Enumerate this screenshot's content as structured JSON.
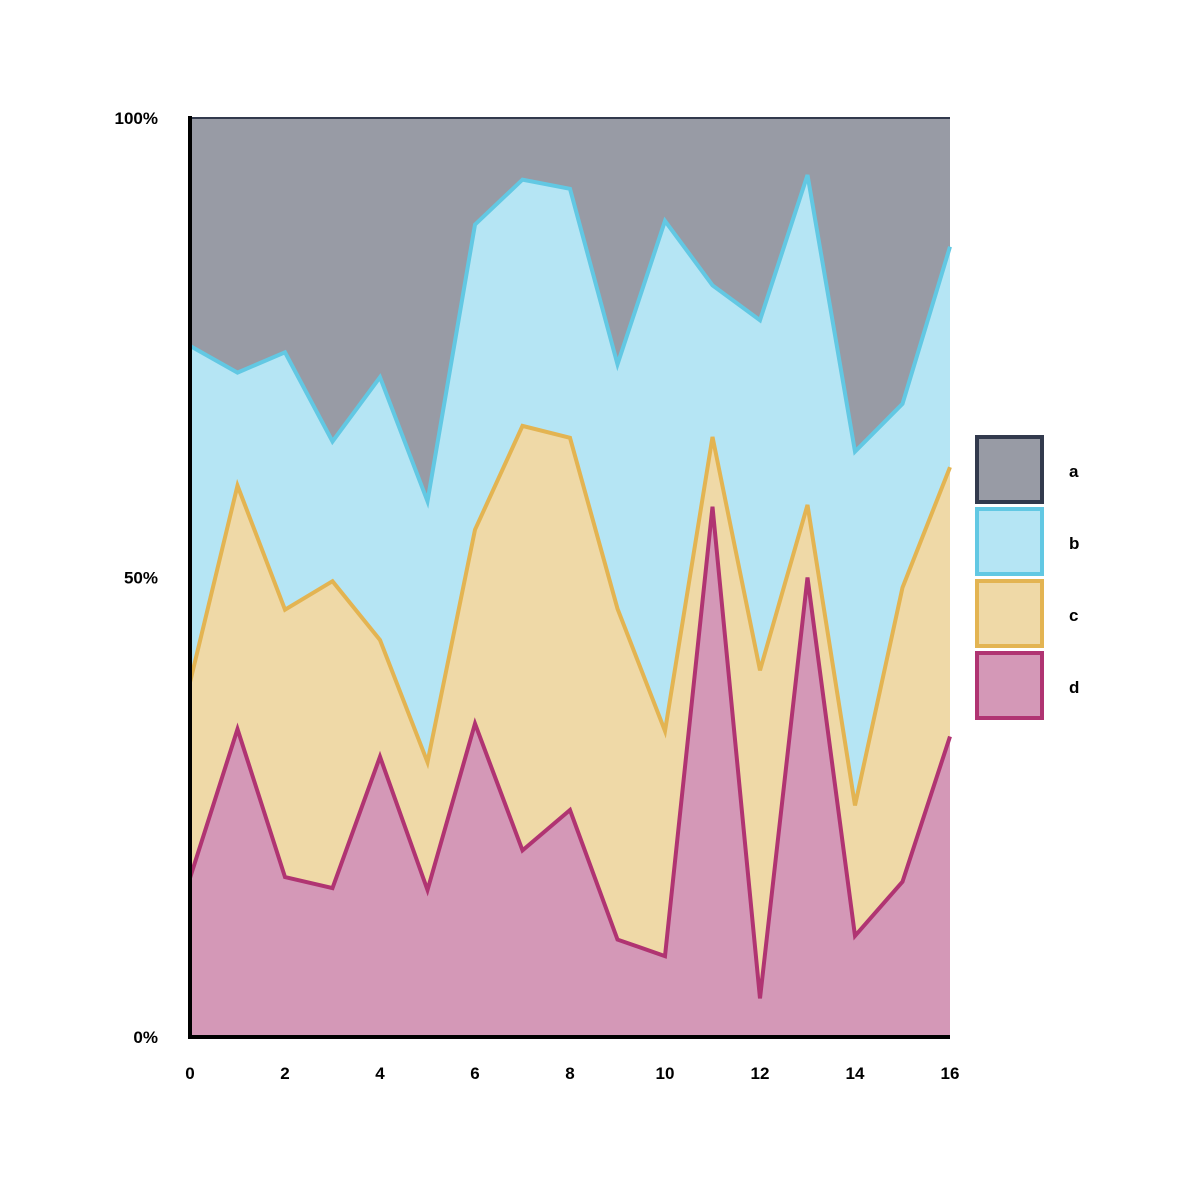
{
  "chart_data": {
    "type": "area",
    "stacked": "percent",
    "x": [
      0,
      1,
      2,
      3,
      4,
      5,
      6,
      7,
      8,
      9,
      10,
      11,
      12,
      13,
      14,
      15,
      16
    ],
    "xlim": [
      0,
      16
    ],
    "ylim": [
      0,
      100
    ],
    "xticks": [
      {
        "value": 0,
        "label": "0"
      },
      {
        "value": 2,
        "label": "2"
      },
      {
        "value": 4,
        "label": "4"
      },
      {
        "value": 6,
        "label": "6"
      },
      {
        "value": 8,
        "label": "8"
      },
      {
        "value": 10,
        "label": "10"
      },
      {
        "value": 12,
        "label": "12"
      },
      {
        "value": 14,
        "label": "14"
      },
      {
        "value": 16,
        "label": "16"
      }
    ],
    "yticks": [
      {
        "value": 0,
        "label": "0%"
      },
      {
        "value": 50,
        "label": "50%"
      },
      {
        "value": 100,
        "label": "100%"
      }
    ],
    "grid": false,
    "legend_position": "right",
    "series": [
      {
        "name": "d",
        "fill": "#d498b7",
        "stroke": "#b03472",
        "values": [
          17.3,
          33.5,
          17.4,
          16.2,
          30.5,
          16.0,
          34.1,
          20.3,
          24.7,
          10.6,
          8.8,
          57.7,
          4.2,
          50.0,
          11.0,
          16.9,
          32.7
        ]
      },
      {
        "name": "c",
        "fill": "#efd9a7",
        "stroke": "#e3b452",
        "values": [
          21.3,
          26.5,
          29.1,
          33.4,
          12.7,
          13.9,
          21.1,
          46.2,
          40.5,
          36.0,
          24.5,
          7.6,
          35.7,
          7.9,
          14.2,
          32.0,
          29.3
        ]
      },
      {
        "name": "b",
        "fill": "#b5e5f4",
        "stroke": "#62c8e3",
        "values": [
          36.6,
          12.3,
          28.0,
          15.2,
          28.6,
          28.4,
          33.2,
          26.8,
          27.1,
          26.6,
          55.5,
          16.5,
          38.1,
          35.9,
          38.5,
          20.0,
          24.0
        ]
      },
      {
        "name": "a",
        "fill": "#989ba5",
        "stroke": "#323a4d",
        "values": [
          24.8,
          27.7,
          25.5,
          35.2,
          28.2,
          41.7,
          11.6,
          6.7,
          7.7,
          26.8,
          11.2,
          18.2,
          22.0,
          6.2,
          36.3,
          31.1,
          14.0
        ]
      }
    ],
    "legend": [
      {
        "name": "a",
        "fill": "#989ba5",
        "stroke": "#323a4d"
      },
      {
        "name": "b",
        "fill": "#b5e5f4",
        "stroke": "#62c8e3"
      },
      {
        "name": "c",
        "fill": "#efd9a7",
        "stroke": "#e3b452"
      },
      {
        "name": "d",
        "fill": "#d498b7",
        "stroke": "#b03472"
      }
    ]
  }
}
